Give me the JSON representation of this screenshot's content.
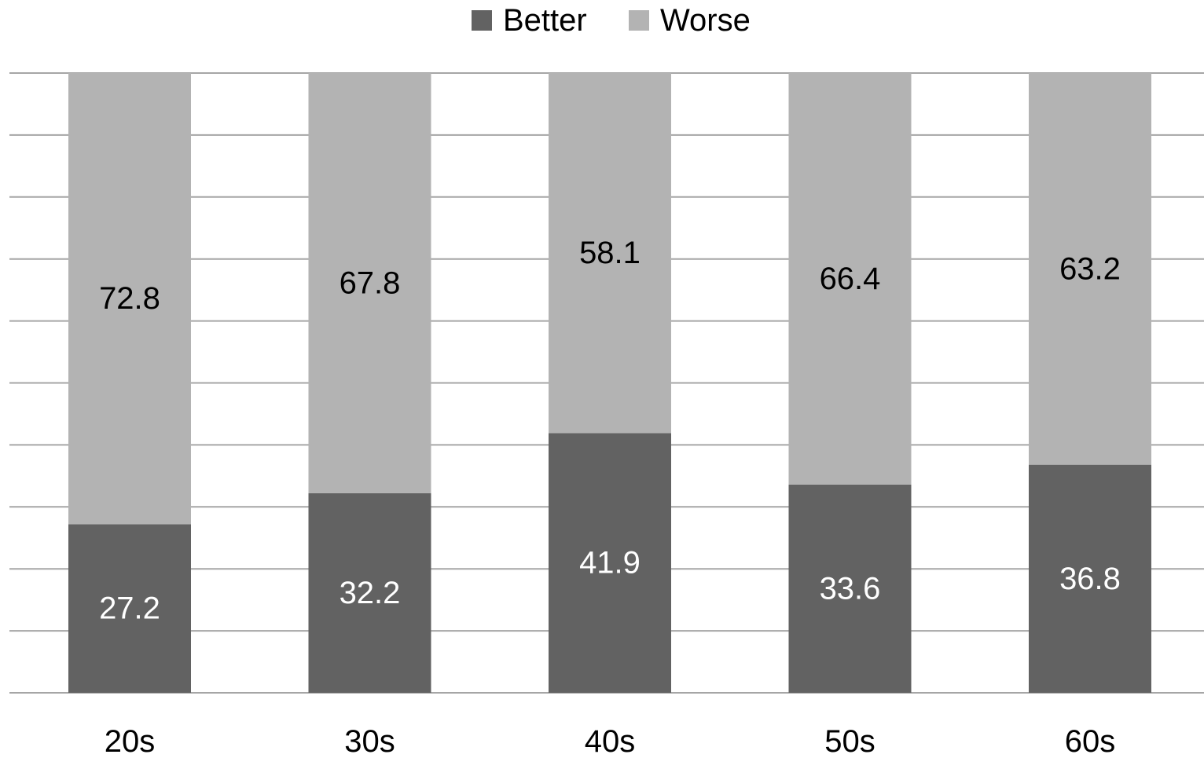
{
  "chart_data": {
    "type": "bar",
    "stacked": true,
    "categories": [
      "20s",
      "30s",
      "40s",
      "50s",
      "60s"
    ],
    "series": [
      {
        "name": "Better",
        "values": [
          27.2,
          32.2,
          41.9,
          33.6,
          36.8
        ],
        "color": "#626262",
        "label_color": "#ffffff"
      },
      {
        "name": "Worse",
        "values": [
          72.8,
          67.8,
          58.1,
          66.4,
          63.2
        ],
        "color": "#b3b3b3",
        "label_color": "#000000"
      }
    ],
    "title": "",
    "xlabel": "",
    "ylabel": "",
    "ylim": [
      0,
      100
    ],
    "grid": true,
    "grid_step": 10,
    "legend": "top-center",
    "data_labels": true
  }
}
